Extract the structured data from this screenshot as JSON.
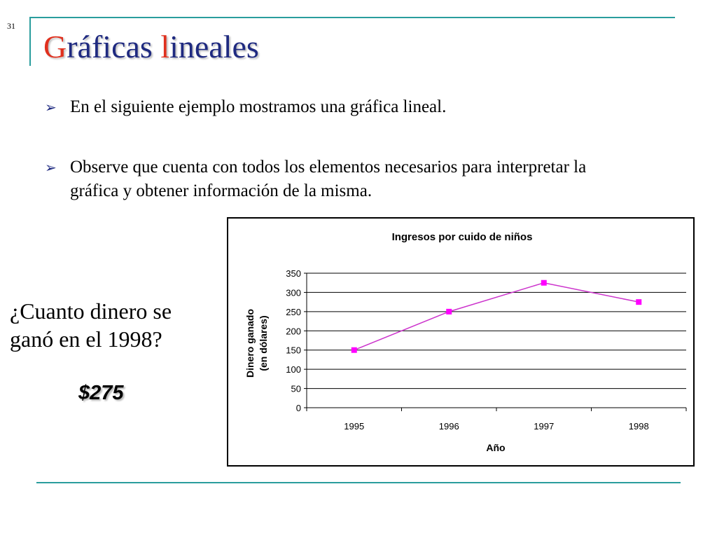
{
  "slide": {
    "number": "31",
    "title_first_letter": "G",
    "title_part1": "ráficas ",
    "title_accent": "l",
    "title_part2": "ineales",
    "bullets": [
      {
        "text": "En el siguiente ejemplo mostramos una gráfica lineal."
      },
      {
        "text": "Observe que cuenta con todos los elementos necesarios para interpretar la gráfica y obtener información  de la misma."
      }
    ],
    "bullet_icon": "arrow-bullet-icon",
    "question": "¿Cuanto dinero se ganó en el 1998?",
    "answer": "$275",
    "colors": {
      "accent_rule": "#2a9d9d",
      "title": "#1f2a80",
      "title_accent": "#e0301e",
      "series_line": "#cc33cc",
      "series_marker": "#ff00ff"
    }
  },
  "chart_data": {
    "type": "line",
    "title": "Ingresos por cuido de niños",
    "xlabel": "Año",
    "ylabel_line1": "Dinero ganado",
    "ylabel_line2": "(en dólares)",
    "categories": [
      "1995",
      "1996",
      "1997",
      "1998"
    ],
    "series": [
      {
        "values": [
          150,
          250,
          325,
          275
        ]
      }
    ],
    "ylim": [
      0,
      350
    ],
    "yticks": [
      0,
      50,
      100,
      150,
      200,
      250,
      300,
      350
    ],
    "grid": true,
    "legend": "none"
  }
}
